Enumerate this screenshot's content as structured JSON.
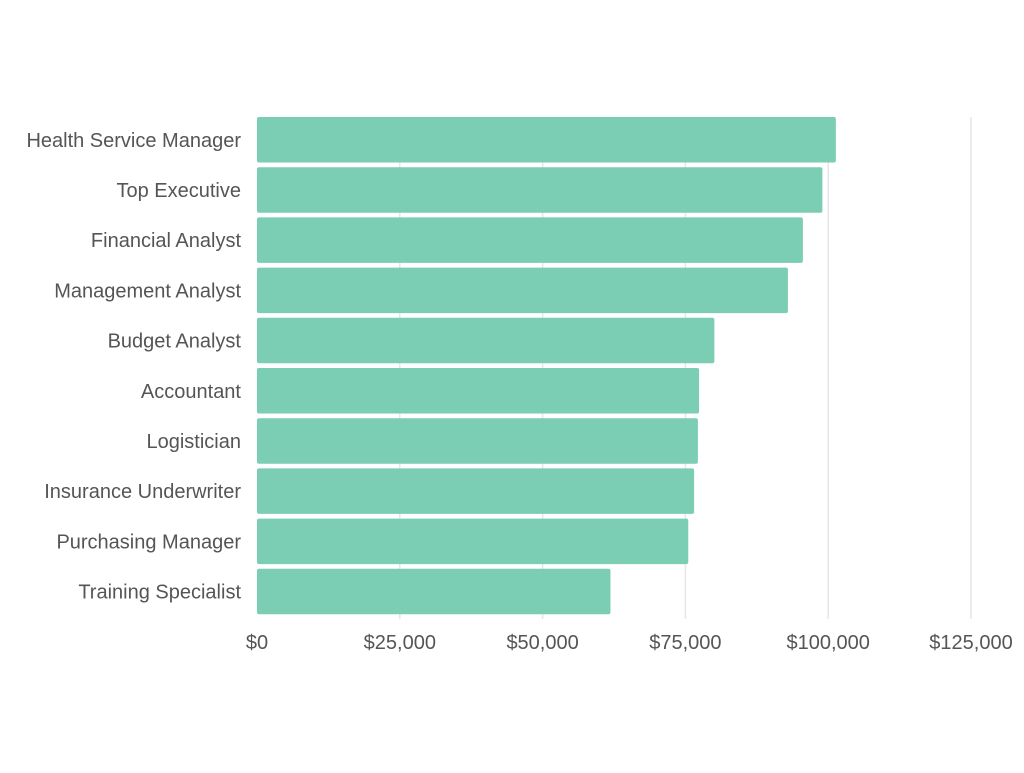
{
  "chart_data": {
    "type": "bar",
    "orientation": "horizontal",
    "title": "",
    "xlabel": "",
    "ylabel": "",
    "categories": [
      "Health Service Manager",
      "Top Executive",
      "Financial Analyst",
      "Management Analyst",
      "Budget Analyst",
      "Accountant",
      "Logistician",
      "Insurance Underwriter",
      "Purchasing Manager",
      "Training Specialist"
    ],
    "values": [
      101340,
      98980,
      95570,
      92950,
      80070,
      77390,
      77190,
      76520,
      75500,
      61880
    ],
    "xlim": [
      0,
      125000
    ],
    "xticks": [
      0,
      25000,
      50000,
      75000,
      100000,
      125000
    ],
    "xtick_labels": [
      "$0",
      "$25,000",
      "$50,000",
      "$75,000",
      "$100,000",
      "$125,000"
    ],
    "grid": "vertical",
    "legend": "none",
    "colors": {
      "bar": "#7bcdb4",
      "grid": "#e6e6e6",
      "text": "#555555"
    }
  }
}
